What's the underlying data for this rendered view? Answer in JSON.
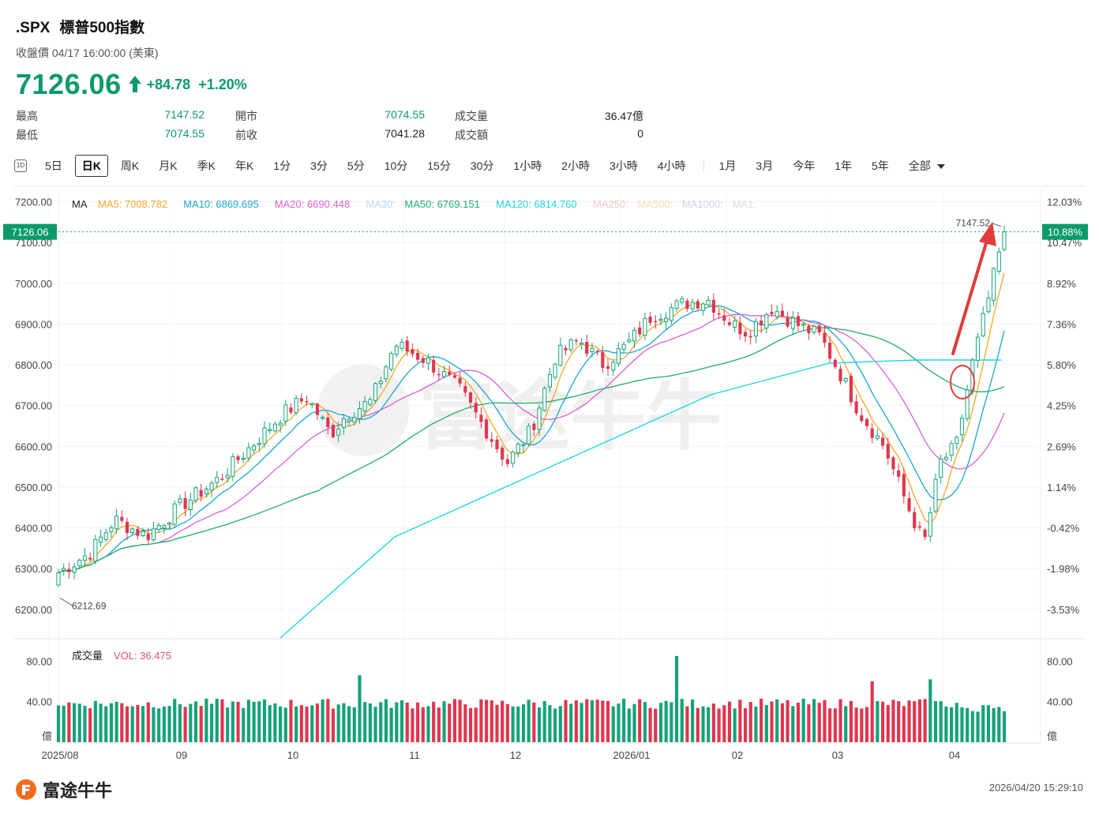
{
  "header": {
    "symbol": ".SPX",
    "name": "標普500指數",
    "status": "收盤價 04/17 16:00:00 (美東)",
    "price": "7126.06",
    "change": "+84.78",
    "change_pct": "+1.20%",
    "stats": [
      {
        "label": "最高",
        "value": "7147.52"
      },
      {
        "label": "最低",
        "value": "7074.55"
      },
      {
        "label": "開市",
        "value": "7074.55"
      },
      {
        "label": "前收",
        "value": "7041.28"
      },
      {
        "label": "成交量",
        "value": "36.47億"
      },
      {
        "label": "成交額",
        "value": "0"
      }
    ]
  },
  "timeframes": {
    "icon": "1D",
    "items": [
      "5日",
      "日K",
      "周K",
      "月K",
      "季K",
      "年K",
      "1分",
      "3分",
      "5分",
      "10分",
      "15分",
      "30分",
      "1小時",
      "2小時",
      "3小時",
      "4小時"
    ],
    "ranges": [
      "1月",
      "3月",
      "今年",
      "1年",
      "5年",
      "全部"
    ],
    "active": "日K"
  },
  "legend": {
    "ma": "MA",
    "items": [
      {
        "text": "MA5: 7008.782",
        "color": "#f5a623"
      },
      {
        "text": "MA10: 6869.695",
        "color": "#19a7cf"
      },
      {
        "text": "MA20: 6690.448",
        "color": "#d85fd8"
      },
      {
        "text": "MA30:",
        "color": "#b7d6ee"
      },
      {
        "text": "MA50: 6769.151",
        "color": "#1fae69"
      },
      {
        "text": "MA120: 6814.760",
        "color": "#1ed6e6"
      },
      {
        "text": "MA250:",
        "color": "#f3c7c7"
      },
      {
        "text": "MA500:",
        "color": "#f6ddb0"
      },
      {
        "text": "MA1000:",
        "color": "#e0c9ea"
      },
      {
        "text": "MA1:",
        "color": "#dcdcdc"
      }
    ]
  },
  "volume_legend": {
    "label": "成交量",
    "vol": "VOL: 36.475"
  },
  "chart_data": {
    "type": "candlestick",
    "x_ticks": [
      "2025/08",
      "09",
      "10",
      "11",
      "12",
      "2026/01",
      "02",
      "03",
      "04"
    ],
    "y_ticks": [
      "7200.00",
      "7100.00",
      "7000.00",
      "6900.00",
      "6800.00",
      "6700.00",
      "6600.00",
      "6500.00",
      "6400.00",
      "6300.00",
      "6200.00"
    ],
    "pct_ticks": [
      "12.03%",
      "10.47%",
      "8.92%",
      "7.36%",
      "5.80%",
      "4.25%",
      "2.69%",
      "1.14%",
      "-0.42%",
      "-1.98%",
      "-3.53%"
    ],
    "ylim": [
      6130,
      7230
    ],
    "last_price_label": "7126.06",
    "last_pct_label": "10.88%",
    "high_marker": "7147.52",
    "low_marker": "6212.69",
    "volume_ticks": [
      "80.00",
      "40.00",
      "億"
    ],
    "volume_unit": "億",
    "volume_ylim": [
      0,
      95
    ],
    "colors": {
      "up": "#14a27a",
      "down": "#e0364e",
      "annotation": "#e23b3b"
    }
  },
  "footer": {
    "brand": "富途牛牛",
    "timestamp": "2026/04/20 15:29:10",
    "watermark": "富途牛牛"
  }
}
